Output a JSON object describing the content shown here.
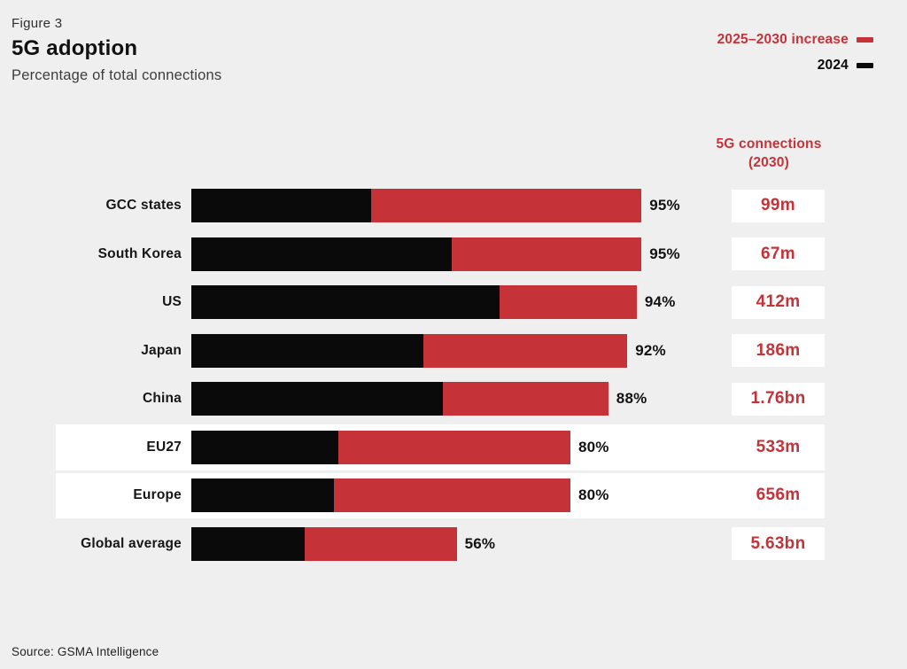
{
  "figure": {
    "label": "Figure 3",
    "title": "5G adoption",
    "subtitle": "Percentage of total connections"
  },
  "legend": {
    "increase_label": "2025–2030 increase",
    "base_label": "2024"
  },
  "value_column": {
    "header_line1": "5G connections",
    "header_line2": "(2030)"
  },
  "source": "Source: GSMA Intelligence",
  "colors": {
    "background": "#efefef",
    "red": "#c53238",
    "black": "#0a0a0a",
    "highlight_band": "#ffffff"
  },
  "rows": [
    {
      "label": "GCC states",
      "total": 95,
      "v2024": 38,
      "pct_label": "95%",
      "value": "99m",
      "highlight": false
    },
    {
      "label": "South Korea",
      "total": 95,
      "v2024": 55,
      "pct_label": "95%",
      "value": "67m",
      "highlight": false
    },
    {
      "label": "US",
      "total": 94,
      "v2024": 65,
      "pct_label": "94%",
      "value": "412m",
      "highlight": false
    },
    {
      "label": "Japan",
      "total": 92,
      "v2024": 49,
      "pct_label": "92%",
      "value": "186m",
      "highlight": false
    },
    {
      "label": "China",
      "total": 88,
      "v2024": 53,
      "pct_label": "88%",
      "value": "1.76bn",
      "highlight": false
    },
    {
      "label": "EU27",
      "total": 80,
      "v2024": 31,
      "pct_label": "80%",
      "value": "533m",
      "highlight": true
    },
    {
      "label": "Europe",
      "total": 80,
      "v2024": 30,
      "pct_label": "80%",
      "value": "656m",
      "highlight": true
    },
    {
      "label": "Global average",
      "total": 56,
      "v2024": 24,
      "pct_label": "56%",
      "value": "5.63bn",
      "highlight": false
    }
  ],
  "chart_data": {
    "type": "bar",
    "orientation": "horizontal",
    "stacked": true,
    "title": "5G adoption",
    "subtitle": "Percentage of total connections",
    "figure_label": "Figure 3",
    "categories": [
      "GCC states",
      "South Korea",
      "US",
      "Japan",
      "China",
      "EU27",
      "Europe",
      "Global average"
    ],
    "series": [
      {
        "name": "2024",
        "color": "#0a0a0a",
        "values": [
          38,
          55,
          65,
          49,
          53,
          31,
          30,
          24
        ]
      },
      {
        "name": "2025–2030 increase",
        "color": "#c53238",
        "values": [
          57,
          40,
          29,
          43,
          35,
          49,
          50,
          32
        ]
      }
    ],
    "totals_pct": [
      95,
      95,
      94,
      92,
      88,
      80,
      80,
      56
    ],
    "total_labels": [
      "95%",
      "95%",
      "94%",
      "92%",
      "88%",
      "80%",
      "80%",
      "56%"
    ],
    "value_column_header": "5G connections (2030)",
    "value_column_values": [
      "99m",
      "67m",
      "412m",
      "186m",
      "1.76bn",
      "533m",
      "656m",
      "5.63bn"
    ],
    "highlighted_categories": [
      "EU27",
      "Europe"
    ],
    "xlim": [
      0,
      100
    ],
    "grid": false,
    "legend_position": "top-right",
    "source": "Source: GSMA Intelligence"
  }
}
